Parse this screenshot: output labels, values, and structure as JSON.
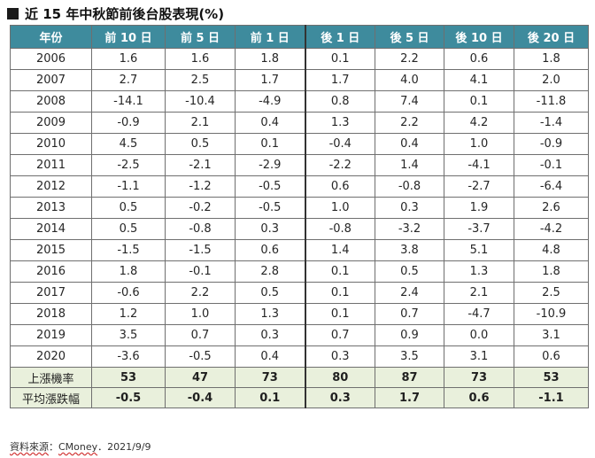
{
  "title": "近 15 年中秋節前後台股表現(%)",
  "columns": [
    "年份",
    "前 10 日",
    "前 5 日",
    "前 1 日",
    "後 1 日",
    "後 5 日",
    "後 10 日",
    "後 20 日"
  ],
  "rows": [
    {
      "year": "2006",
      "values": [
        "1.6",
        "1.6",
        "1.8",
        "0.1",
        "2.2",
        "0.6",
        "1.8"
      ]
    },
    {
      "year": "2007",
      "values": [
        "2.7",
        "2.5",
        "1.7",
        "1.7",
        "4.0",
        "4.1",
        "2.0"
      ]
    },
    {
      "year": "2008",
      "values": [
        "-14.1",
        "-10.4",
        "-4.9",
        "0.8",
        "7.4",
        "0.1",
        "-11.8"
      ]
    },
    {
      "year": "2009",
      "values": [
        "-0.9",
        "2.1",
        "0.4",
        "1.3",
        "2.2",
        "4.2",
        "-1.4"
      ]
    },
    {
      "year": "2010",
      "values": [
        "4.5",
        "0.5",
        "0.1",
        "-0.4",
        "0.4",
        "1.0",
        "-0.9"
      ]
    },
    {
      "year": "2011",
      "values": [
        "-2.5",
        "-2.1",
        "-2.9",
        "-2.2",
        "1.4",
        "-4.1",
        "-0.1"
      ]
    },
    {
      "year": "2012",
      "values": [
        "-1.1",
        "-1.2",
        "-0.5",
        "0.6",
        "-0.8",
        "-2.7",
        "-6.4"
      ]
    },
    {
      "year": "2013",
      "values": [
        "0.5",
        "-0.2",
        "-0.5",
        "1.0",
        "0.3",
        "1.9",
        "2.6"
      ]
    },
    {
      "year": "2014",
      "values": [
        "0.5",
        "-0.8",
        "0.3",
        "-0.8",
        "-3.2",
        "-3.7",
        "-4.2"
      ]
    },
    {
      "year": "2015",
      "values": [
        "-1.5",
        "-1.5",
        "0.6",
        "1.4",
        "3.8",
        "5.1",
        "4.8"
      ]
    },
    {
      "year": "2016",
      "values": [
        "1.8",
        "-0.1",
        "2.8",
        "0.1",
        "0.5",
        "1.3",
        "1.8"
      ]
    },
    {
      "year": "2017",
      "values": [
        "-0.6",
        "2.2",
        "0.5",
        "0.1",
        "2.4",
        "2.1",
        "2.5"
      ]
    },
    {
      "year": "2018",
      "values": [
        "1.2",
        "1.0",
        "1.3",
        "0.1",
        "0.7",
        "-4.7",
        "-10.9"
      ]
    },
    {
      "year": "2019",
      "values": [
        "3.5",
        "0.7",
        "0.3",
        "0.7",
        "0.9",
        "0.0",
        "3.1"
      ]
    },
    {
      "year": "2020",
      "values": [
        "-3.6",
        "-0.5",
        "0.4",
        "0.3",
        "3.5",
        "3.1",
        "0.6"
      ]
    }
  ],
  "summary": [
    {
      "label": "上漲機率",
      "values": [
        "53",
        "47",
        "73",
        "80",
        "87",
        "73",
        "53"
      ]
    },
    {
      "label": "平均漲跌幅",
      "values": [
        "-0.5",
        "-0.4",
        "0.1",
        "0.3",
        "1.7",
        "0.6",
        "-1.1"
      ]
    }
  ],
  "footer": {
    "source_label": "資料來源",
    "separator": "：",
    "source_name": "CMoney",
    "date": "．2021/9/9"
  },
  "colors": {
    "header_bg": "#3e8b9d",
    "summary_bg": "#e9f0dc"
  }
}
